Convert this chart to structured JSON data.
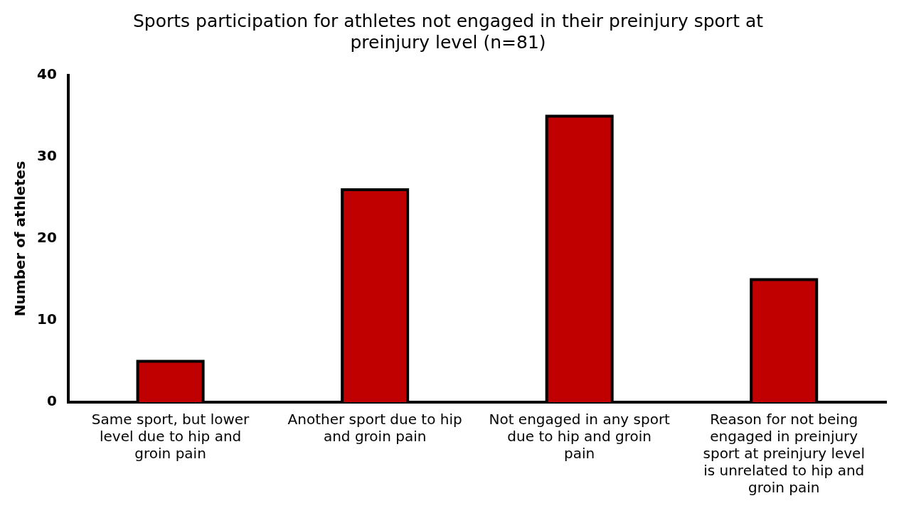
{
  "chart_data": {
    "type": "bar",
    "title": "Sports participation for athletes not engaged in their preinjury sport at preinjury level (n=81)",
    "ylabel": "Number of athletes",
    "categories": [
      "Same sport, but lower level due to hip and groin pain",
      "Another sport due to hip and groin pain",
      "Not engaged in any sport due to hip and groin pain",
      "Reason for not being engaged in preinjury sport at preinjury level is unrelated to hip and groin pain"
    ],
    "values": [
      5,
      26,
      35,
      15
    ],
    "color": "#c00000",
    "ylim": [
      0,
      40
    ],
    "yticks": [
      0,
      10,
      20,
      30,
      40
    ],
    "grid": false,
    "legend": false
  }
}
